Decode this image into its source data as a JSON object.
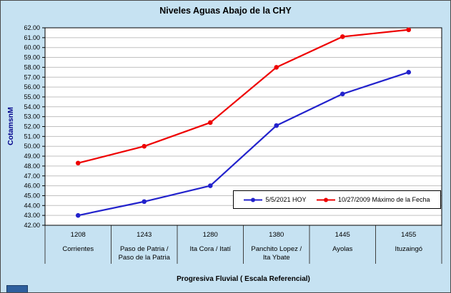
{
  "window": {
    "background_color": "#C6E2F2",
    "plot_background_color": "#FFFFFF",
    "gridline_color": "#C0C0C0"
  },
  "chart_data": {
    "type": "line",
    "title": "Niveles Aguas Abajo de la CHY",
    "xlabel": "Progresiva Fluvial ( Escala Referencial)",
    "ylabel": "CotamsnM",
    "ylim": [
      42,
      62
    ],
    "ytick_step": 1,
    "ytick_decimals": 2,
    "grid": true,
    "legend_position": "inside-bottom-right",
    "categories": [
      {
        "km": "1208",
        "name": [
          "Corrientes"
        ]
      },
      {
        "km": "1243",
        "name": [
          "Paso de Patria /",
          "Paso de la Patria"
        ]
      },
      {
        "km": "1280",
        "name": [
          "Ita Cora / Itatí"
        ]
      },
      {
        "km": "1380",
        "name": [
          "Panchito Lopez /",
          "Ita Ybate"
        ]
      },
      {
        "km": "1445",
        "name": [
          "Ayolas"
        ]
      },
      {
        "km": "1455",
        "name": [
          "Ituzaingó"
        ]
      }
    ],
    "series": [
      {
        "name": "5/5/2021 HOY",
        "color": "#2222CC",
        "values": [
          43.0,
          44.4,
          46.0,
          52.1,
          55.3,
          57.5
        ]
      },
      {
        "name": "10/27/2009 Máximo de la Fecha",
        "color": "#EE0000",
        "values": [
          48.3,
          50.0,
          52.4,
          58.0,
          61.1,
          61.8
        ]
      }
    ]
  }
}
